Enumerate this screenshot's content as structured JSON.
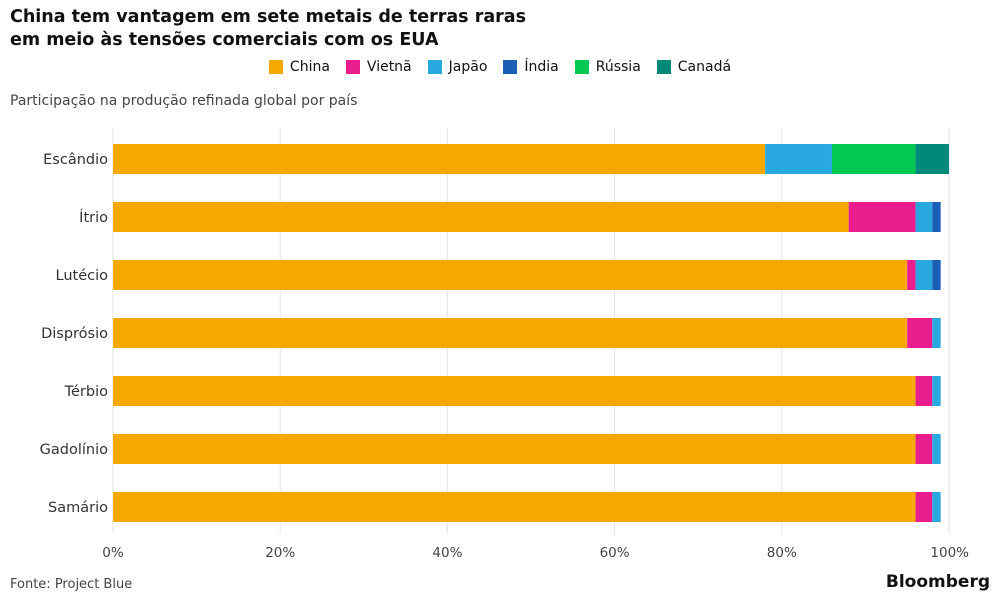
{
  "title_lines": [
    "China tem vantagem em sete metais de terras raras",
    "em meio às tensões comerciais com os EUA"
  ],
  "subtitle": "Participação na produção refinada global por país",
  "source": "Fonte: Project Blue",
  "brand": "Bloomberg",
  "chart_data": {
    "type": "bar",
    "orientation": "horizontal",
    "stacked": true,
    "categories": [
      "Escândio",
      "Ítrio",
      "Lutécio",
      "Disprósio",
      "Térbio",
      "Gadolínio",
      "Samário"
    ],
    "series": [
      {
        "name": "China",
        "color": "#F5A800",
        "values": [
          78,
          88,
          95,
          95,
          96,
          96,
          96
        ]
      },
      {
        "name": "Vietnã",
        "color": "#E91E8C",
        "values": [
          0,
          8,
          1,
          3,
          2,
          2,
          2
        ]
      },
      {
        "name": "Japão",
        "color": "#29A8E0",
        "values": [
          8,
          2,
          2,
          1,
          1,
          1,
          1
        ]
      },
      {
        "name": "Índia",
        "color": "#1B5EB5",
        "values": [
          0,
          1,
          1,
          0,
          0,
          0,
          0
        ]
      },
      {
        "name": "Rússia",
        "color": "#00C853",
        "values": [
          10,
          0,
          0,
          0,
          0,
          0,
          0
        ]
      },
      {
        "name": "Canadá",
        "color": "#00897B",
        "values": [
          4,
          0,
          0,
          0,
          0,
          0,
          0
        ]
      }
    ],
    "xlim": [
      0,
      100
    ],
    "xticks": [
      0,
      20,
      40,
      60,
      80,
      100
    ],
    "xtick_labels": [
      "0%",
      "20%",
      "40%",
      "60%",
      "80%",
      "100%"
    ],
    "grid": true,
    "legend_position": "top-center"
  }
}
